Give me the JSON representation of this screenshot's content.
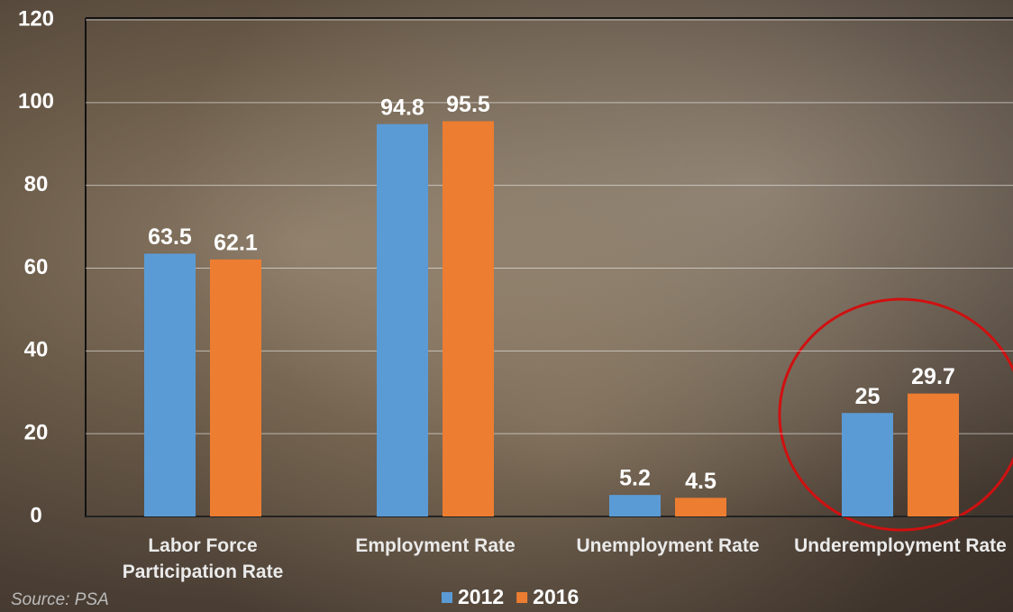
{
  "chart_data": {
    "type": "bar",
    "categories": [
      "Labor Force Participation Rate",
      "Employment Rate",
      "Unemployment Rate",
      "Underemployment Rate"
    ],
    "series": [
      {
        "name": "2012",
        "color": "#5b9bd5",
        "values": [
          63.5,
          94.8,
          5.2,
          25
        ]
      },
      {
        "name": "2016",
        "color": "#ed7d31",
        "values": [
          62.1,
          95.5,
          4.5,
          29.7
        ]
      }
    ],
    "ylim": [
      0,
      120
    ],
    "yticks": [
      0,
      20,
      40,
      60,
      80,
      100,
      120
    ],
    "grid": true,
    "legend": "bottom",
    "source": "Source: PSA"
  }
}
